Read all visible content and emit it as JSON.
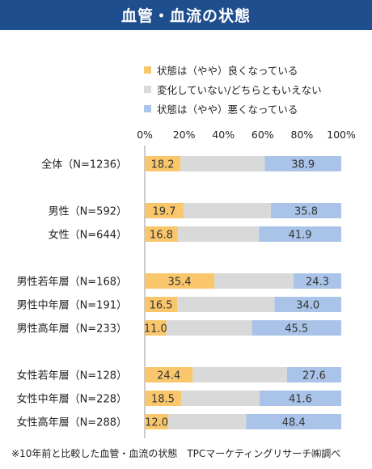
{
  "title": "血管・血流の状態",
  "footnote": "※10年前と比較した血管・血流の状態　TPCマーケティングリサーチ㈱調べ",
  "chart_data": {
    "type": "bar",
    "orientation": "horizontal",
    "stacked": true,
    "title": "血管・血流の状態",
    "x_tick_labels": [
      "0%",
      "20%",
      "40%",
      "60%",
      "80%",
      "100%"
    ],
    "xlim": [
      0,
      100
    ],
    "legend_position": "top",
    "categories": [
      "全体（N=1236）",
      "男性（N=592）",
      "女性（N=644）",
      "男性若年層（N=168）",
      "男性中年層（N=191）",
      "男性高年層（N=233）",
      "女性若年層（N=128）",
      "女性中年層（N=228）",
      "女性高年層（N=288）"
    ],
    "groups": [
      [
        0
      ],
      [
        1,
        2
      ],
      [
        3,
        4,
        5
      ],
      [
        6,
        7,
        8
      ]
    ],
    "series": [
      {
        "name": "状態は（やや）良くなっている",
        "color": "#f9c66b",
        "values": [
          18.2,
          19.7,
          16.8,
          35.4,
          16.5,
          11.0,
          24.4,
          18.5,
          12.0
        ],
        "labels": [
          "18.2",
          "19.7",
          "16.8",
          "35.4",
          "16.5",
          "11.0",
          "24.4",
          "18.5",
          "12.0"
        ]
      },
      {
        "name": "変化していない/どちらともいえない",
        "color": "#d9d9d9",
        "values": [
          42.9,
          44.5,
          41.3,
          40.3,
          49.5,
          43.5,
          48.0,
          39.9,
          39.6
        ],
        "labels": null
      },
      {
        "name": "状態は（やや）悪くなっている",
        "color": "#a9c4e8",
        "values": [
          38.9,
          35.8,
          41.9,
          24.3,
          34.0,
          45.5,
          27.6,
          41.6,
          48.4
        ],
        "labels": [
          "38.9",
          "35.8",
          "41.9",
          "24.3",
          "34.0",
          "45.5",
          "27.6",
          "41.6",
          "48.4"
        ]
      }
    ]
  }
}
